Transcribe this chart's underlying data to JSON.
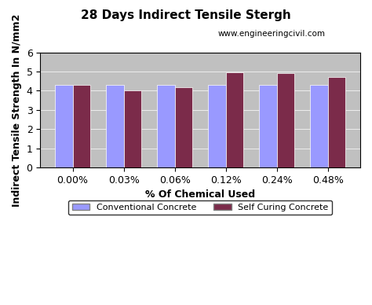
{
  "title": "28 Days Indirect Tensile Stergh",
  "subtitle": "www.engineeringcivil.com",
  "xlabel": "% Of Chemical Used",
  "ylabel": "Indirect Tensile Strength In N/mm2",
  "categories": [
    "0.00%",
    "0.03%",
    "0.06%",
    "0.12%",
    "0.24%",
    "0.48%"
  ],
  "conventional": [
    4.3,
    4.3,
    4.3,
    4.3,
    4.3,
    4.3
  ],
  "self_curing": [
    4.3,
    4.0,
    4.2,
    4.95,
    4.9,
    4.7
  ],
  "bar_color_conventional": "#9999FF",
  "bar_color_self_curing": "#7B2B4A",
  "background_color": "#C0C0C0",
  "ylim": [
    0,
    6
  ],
  "yticks": [
    0,
    1,
    2,
    3,
    4,
    5,
    6
  ],
  "bar_width": 0.35,
  "legend_label_1": "Conventional Concrete",
  "legend_label_2": "Self Curing Concrete",
  "title_fontsize": 11,
  "label_fontsize": 9,
  "tick_fontsize": 9
}
